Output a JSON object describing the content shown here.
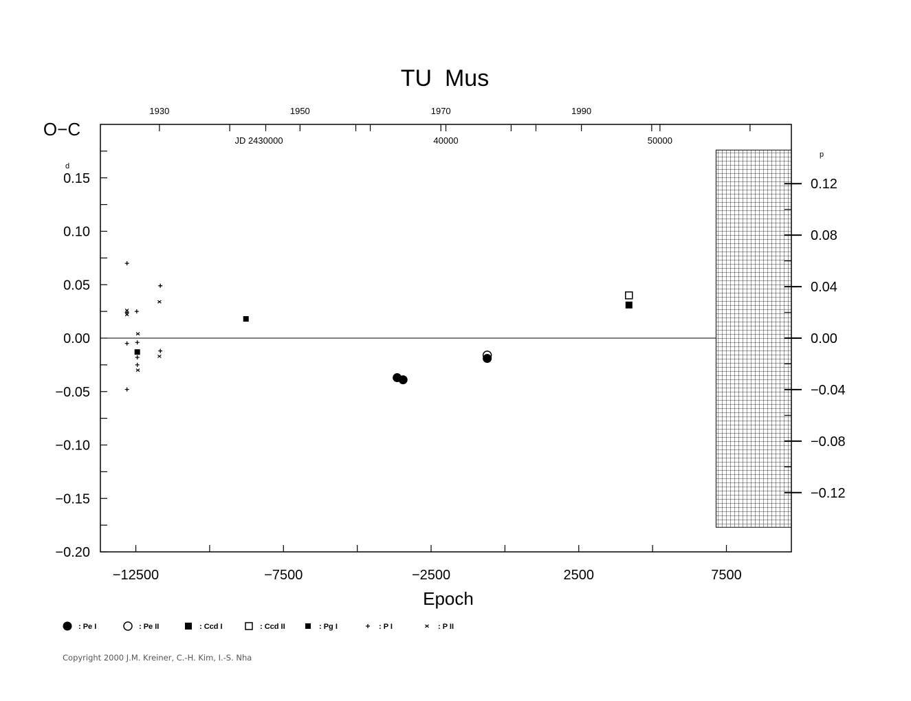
{
  "chart_data": {
    "type": "scatter",
    "title": "TU  Mus",
    "xlabel": "Epoch",
    "ylabel": "O−C",
    "y_unit_left": "d",
    "y_unit_right": "p",
    "xlim": [
      -13700,
      9700
    ],
    "ylim": [
      -0.2,
      0.2
    ],
    "x_ticks": [
      -12500,
      -7500,
      -2500,
      2500,
      7500
    ],
    "x_tick_labels": [
      "−12500",
      "−7500",
      "−2500",
      "2500",
      "7500"
    ],
    "y_ticks": [
      0.15,
      0.1,
      0.05,
      0.0,
      -0.05,
      -0.1,
      -0.15,
      -0.2
    ],
    "y_tick_labels": [
      "0.15",
      "0.10",
      "0.05",
      "0.00",
      "−0.05",
      "−0.10",
      "−0.15",
      "−0.20"
    ],
    "right_axis": {
      "ticks": [
        0.12,
        0.08,
        0.04,
        0.0,
        -0.04,
        -0.08,
        -0.12
      ],
      "labels": [
        "0.12",
        "0.08",
        "0.04",
        "0.00",
        "−0.04",
        "−0.08",
        "−0.12"
      ],
      "scale": 1.2045
    },
    "top_axis_years": {
      "ticks": [
        1930,
        1950,
        1970,
        1990
      ],
      "labels": [
        "1930",
        "1950",
        "1970",
        "1990"
      ],
      "epoch_at_year": [
        -11700,
        -6940,
        -2170,
        2590
      ]
    },
    "top_axis_jd": {
      "ticks": [
        30000,
        40000,
        50000
      ],
      "labels": [
        "JD  2430000",
        "40000",
        "50000"
      ],
      "epoch_at_jd": [
        -8100,
        -2000,
        5250
      ]
    },
    "zero_line": 0.0,
    "hatched_region": {
      "x_from": 7150,
      "x_to": 9700,
      "y_from": -0.177,
      "y_to": 0.176
    },
    "series": [
      {
        "name": "Pe I",
        "marker": "filled-circle",
        "points": [
          [
            -3650,
            -0.037
          ],
          [
            -3450,
            -0.039
          ],
          [
            -600,
            -0.019
          ]
        ]
      },
      {
        "name": "Pe II",
        "marker": "open-circle",
        "points": [
          [
            -600,
            -0.016
          ]
        ]
      },
      {
        "name": "Ccd I",
        "marker": "filled-square",
        "points": [
          [
            4200,
            0.031
          ]
        ]
      },
      {
        "name": "Ccd II",
        "marker": "open-square",
        "points": [
          [
            4200,
            0.04
          ]
        ]
      },
      {
        "name": "Pg I",
        "marker": "small-filled-square",
        "points": [
          [
            -8770,
            0.018
          ],
          [
            -12450,
            -0.013
          ]
        ]
      },
      {
        "name": "P I",
        "marker": "plus",
        "points": [
          [
            -12800,
            0.07
          ],
          [
            -12800,
            0.024
          ],
          [
            -12800,
            -0.005
          ],
          [
            -12800,
            -0.048
          ],
          [
            -12470,
            0.025
          ],
          [
            -12450,
            -0.004
          ],
          [
            -12450,
            -0.018
          ],
          [
            -12450,
            -0.025
          ],
          [
            -11670,
            0.049
          ],
          [
            -11670,
            -0.012
          ]
        ]
      },
      {
        "name": "P II",
        "marker": "cross",
        "points": [
          [
            -12800,
            0.026
          ],
          [
            -12800,
            0.022
          ],
          [
            -12430,
            0.004
          ],
          [
            -12430,
            -0.03
          ],
          [
            -11700,
            0.034
          ],
          [
            -11700,
            -0.017
          ]
        ]
      }
    ],
    "legend": [
      {
        "marker": "filled-circle",
        "label": ": Pe  I"
      },
      {
        "marker": "open-circle",
        "label": ": Pe  II"
      },
      {
        "marker": "filled-square",
        "label": ": Ccd  I"
      },
      {
        "marker": "open-square",
        "label": ": Ccd  II"
      },
      {
        "marker": "small-filled-square",
        "label": ": Pg  I"
      },
      {
        "marker": "plus",
        "label": ": P  I"
      },
      {
        "marker": "cross",
        "label": ": P  II"
      }
    ]
  },
  "copyright": "Copyright 2000 J.M. Kreiner, C.-H. Kim, I.-S. Nha"
}
